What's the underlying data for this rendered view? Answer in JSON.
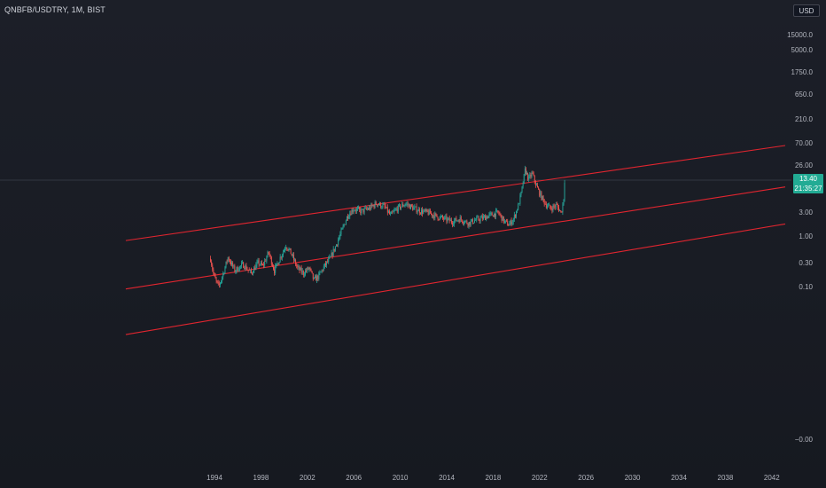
{
  "header": {
    "symbol": "QNBFB/USDTRY, 1M, BIST",
    "currency": "USD"
  },
  "price_label": {
    "value": "13.40",
    "countdown": "21:35:27",
    "color": "#22ab94"
  },
  "colors": {
    "up": "#26a69a",
    "down": "#ef5350",
    "channel": "#e0252f"
  },
  "chart_data": {
    "type": "candlestick",
    "y_scale": "log",
    "y_ticks": [
      "15000.0",
      "5000.0",
      "1750.0",
      "650.0",
      "210.0",
      "70.00",
      "26.00",
      "3.00",
      "1.00",
      "0.30",
      "0.10",
      "−0.00"
    ],
    "x_ticks": [
      "1994",
      "1998",
      "2002",
      "2006",
      "2010",
      "2014",
      "2018",
      "2022",
      "2026",
      "2030",
      "2034",
      "2038",
      "2042"
    ],
    "last_price": 13.4,
    "price_path": [
      [
        1993.5,
        0.14
      ],
      [
        1993.8,
        0.05
      ],
      [
        1994.2,
        0.027
      ],
      [
        1994.6,
        0.06
      ],
      [
        1995.0,
        0.15
      ],
      [
        1995.6,
        0.07
      ],
      [
        1996.3,
        0.1
      ],
      [
        1997.0,
        0.06
      ],
      [
        1997.6,
        0.11
      ],
      [
        1998.0,
        0.09
      ],
      [
        1998.5,
        0.2
      ],
      [
        1999.0,
        0.07
      ],
      [
        1999.5,
        0.15
      ],
      [
        2000.0,
        0.3
      ],
      [
        2000.4,
        0.2
      ],
      [
        2001.0,
        0.08
      ],
      [
        2001.5,
        0.06
      ],
      [
        2002.0,
        0.08
      ],
      [
        2002.4,
        0.04
      ],
      [
        2002.8,
        0.05
      ],
      [
        2003.3,
        0.09
      ],
      [
        2003.8,
        0.14
      ],
      [
        2004.3,
        0.3
      ],
      [
        2004.8,
        0.7
      ],
      [
        2005.3,
        1.7
      ],
      [
        2005.8,
        2.5
      ],
      [
        2006.5,
        2.2
      ],
      [
        2007.2,
        2.6
      ],
      [
        2007.8,
        3.5
      ],
      [
        2008.5,
        2.8
      ],
      [
        2009.0,
        1.7
      ],
      [
        2009.6,
        2.6
      ],
      [
        2010.3,
        3.4
      ],
      [
        2011.0,
        2.6
      ],
      [
        2011.6,
        2.2
      ],
      [
        2012.3,
        2.0
      ],
      [
        2013.0,
        1.6
      ],
      [
        2013.7,
        1.4
      ],
      [
        2014.3,
        1.2
      ],
      [
        2015.0,
        1.4
      ],
      [
        2015.7,
        1.1
      ],
      [
        2016.3,
        1.3
      ],
      [
        2017.0,
        1.5
      ],
      [
        2017.7,
        1.8
      ],
      [
        2018.3,
        2.0
      ],
      [
        2018.8,
        1.2
      ],
      [
        2019.2,
        1.0
      ],
      [
        2019.6,
        1.4
      ],
      [
        2020.0,
        3.0
      ],
      [
        2020.3,
        7.0
      ],
      [
        2020.6,
        25.0
      ],
      [
        2020.9,
        14.0
      ],
      [
        2021.2,
        20.0
      ],
      [
        2021.6,
        9.0
      ],
      [
        2022.0,
        5.0
      ],
      [
        2022.4,
        3.2
      ],
      [
        2022.8,
        2.6
      ],
      [
        2023.3,
        3.1
      ],
      [
        2023.7,
        2.0
      ],
      [
        2023.9,
        4.0
      ],
      [
        2024.0,
        13.4
      ]
    ],
    "channel_lines": [
      {
        "x": [
          1986.2,
          2043.0
        ],
        "y": [
          0.4,
          100
        ]
      },
      {
        "x": [
          1986.2,
          2043.0
        ],
        "y": [
          0.024,
          9
        ]
      },
      {
        "x": [
          1986.2,
          2043.0
        ],
        "y": [
          0.0017,
          1.05
        ]
      }
    ],
    "grid": false
  }
}
